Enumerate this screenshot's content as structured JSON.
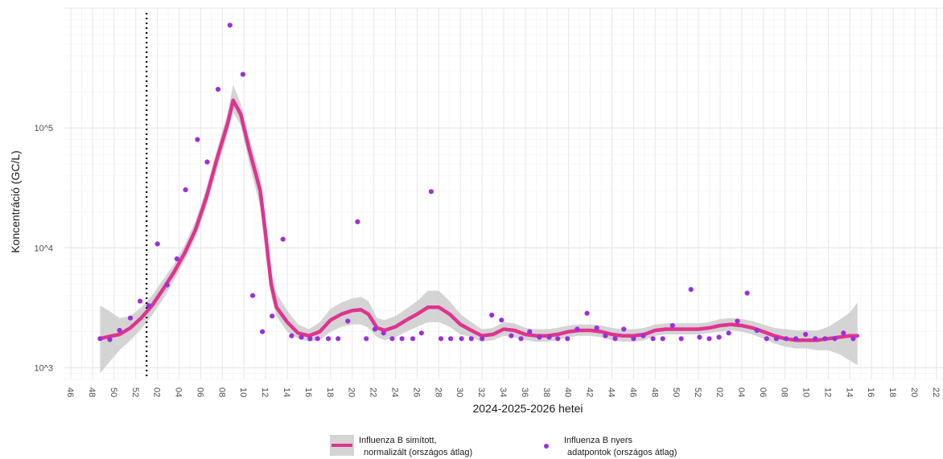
{
  "chart_data": {
    "type": "line",
    "xlabel": "2024-2025-2026 hetei",
    "ylabel": "Koncentráció (GC/L)",
    "y_scale": "log",
    "ylim": [
      800,
      1000000
    ],
    "y_ticks": [
      {
        "value": 1000,
        "label": "10^3"
      },
      {
        "value": 10000,
        "label": "10^4"
      },
      {
        "value": 100000,
        "label": "10^5"
      }
    ],
    "x_ticks": [
      "46",
      "48",
      "50",
      "52",
      "02",
      "04",
      "06",
      "08",
      "10",
      "12",
      "14",
      "16",
      "18",
      "20",
      "22",
      "24",
      "26",
      "28",
      "30",
      "32",
      "34",
      "36",
      "38",
      "40",
      "42",
      "44",
      "46",
      "48",
      "50",
      "52",
      "02",
      "04",
      "06",
      "08",
      "10",
      "12",
      "14",
      "16",
      "18",
      "20",
      "22"
    ],
    "x_unit": "week index from 2024-W46",
    "xlim": [
      -0.6,
      80.6
    ],
    "reference_line": {
      "x": 7,
      "style": "dotted",
      "color": "#000000"
    },
    "grid": true,
    "legend_position": "bottom",
    "colors": {
      "smoothed": "#e0338f",
      "ribbon": "#cccccc",
      "raw": "#9b30d9"
    },
    "smoothed": {
      "name": "Influenza B simított, normalizált (országos átlag)",
      "points": [
        [
          2.7,
          1750
        ],
        [
          3.5,
          1820
        ],
        [
          4.5,
          1900
        ],
        [
          5.5,
          2150
        ],
        [
          6.5,
          2600
        ],
        [
          7.5,
          3300
        ],
        [
          8.5,
          4500
        ],
        [
          9.5,
          6200
        ],
        [
          10.5,
          9000
        ],
        [
          11.5,
          14000
        ],
        [
          12.5,
          26000
        ],
        [
          13.5,
          55000
        ],
        [
          14.5,
          110000
        ],
        [
          15.0,
          170000
        ],
        [
          15.7,
          130000
        ],
        [
          16.5,
          65000
        ],
        [
          17.5,
          30000
        ],
        [
          18.0,
          13000
        ],
        [
          18.5,
          5000
        ],
        [
          19.0,
          3200
        ],
        [
          20.0,
          2400
        ],
        [
          21.0,
          1950
        ],
        [
          22.0,
          1850
        ],
        [
          23.0,
          2000
        ],
        [
          24.0,
          2500
        ],
        [
          25.0,
          2800
        ],
        [
          26.0,
          3000
        ],
        [
          26.8,
          3050
        ],
        [
          27.5,
          2800
        ],
        [
          28.3,
          2150
        ],
        [
          29.0,
          2050
        ],
        [
          30.0,
          2200
        ],
        [
          31.0,
          2500
        ],
        [
          32.0,
          2800
        ],
        [
          33.0,
          3200
        ],
        [
          34.0,
          3200
        ],
        [
          35.0,
          2800
        ],
        [
          36.0,
          2300
        ],
        [
          37.0,
          2050
        ],
        [
          38.0,
          1850
        ],
        [
          39.0,
          1900
        ],
        [
          40.0,
          2100
        ],
        [
          41.0,
          2050
        ],
        [
          42.0,
          1900
        ],
        [
          43.0,
          1850
        ],
        [
          44.0,
          1850
        ],
        [
          45.0,
          1900
        ],
        [
          46.0,
          2000
        ],
        [
          47.0,
          2050
        ],
        [
          48.0,
          2050
        ],
        [
          49.0,
          2000
        ],
        [
          50.0,
          1900
        ],
        [
          51.0,
          1850
        ],
        [
          52.0,
          1850
        ],
        [
          53.0,
          1900
        ],
        [
          54.0,
          2050
        ],
        [
          55.0,
          2100
        ],
        [
          56.0,
          2100
        ],
        [
          57.0,
          2100
        ],
        [
          58.0,
          2100
        ],
        [
          59.0,
          2150
        ],
        [
          60.0,
          2250
        ],
        [
          61.0,
          2300
        ],
        [
          62.0,
          2250
        ],
        [
          63.0,
          2150
        ],
        [
          64.0,
          2000
        ],
        [
          65.0,
          1850
        ],
        [
          66.0,
          1750
        ],
        [
          67.0,
          1700
        ],
        [
          68.0,
          1700
        ],
        [
          69.0,
          1700
        ],
        [
          70.0,
          1750
        ],
        [
          71.0,
          1800
        ],
        [
          72.0,
          1850
        ],
        [
          72.7,
          1850
        ]
      ],
      "lower": [
        900,
        1100,
        1400,
        1700,
        2100,
        2750,
        3700,
        5300,
        7800,
        12000,
        22000,
        45000,
        90000,
        135000,
        105000,
        50000,
        22000,
        9000,
        4000,
        2700,
        2000,
        1750,
        1650,
        1700,
        2000,
        2200,
        2300,
        2300,
        2150,
        1800,
        1700,
        1800,
        2000,
        2200,
        2400,
        2400,
        2200,
        1900,
        1800,
        1650,
        1700,
        1850,
        1800,
        1700,
        1650,
        1650,
        1700,
        1800,
        1850,
        1850,
        1800,
        1700,
        1650,
        1650,
        1700,
        1850,
        1900,
        1900,
        1900,
        1900,
        1950,
        2000,
        2050,
        2000,
        1900,
        1750,
        1600,
        1500,
        1450,
        1450,
        1400,
        1400,
        1300,
        1150,
        1050
      ],
      "upper": [
        3300,
        3000,
        2600,
        2700,
        3200,
        4000,
        5400,
        7200,
        10500,
        16500,
        31000,
        66000,
        135000,
        230000,
        160000,
        82000,
        40000,
        18000,
        6500,
        4200,
        3000,
        2300,
        2100,
        2400,
        3100,
        3500,
        3800,
        3900,
        3600,
        2600,
        2500,
        2700,
        3100,
        3600,
        4400,
        4400,
        3600,
        2800,
        2400,
        2100,
        2150,
        2400,
        2350,
        2150,
        2100,
        2100,
        2150,
        2250,
        2300,
        2300,
        2250,
        2150,
        2100,
        2100,
        2150,
        2300,
        2350,
        2350,
        2350,
        2350,
        2400,
        2550,
        2600,
        2550,
        2450,
        2300,
        2150,
        2100,
        2050,
        2050,
        2050,
        2200,
        2500,
        2900,
        3500
      ]
    },
    "raw": {
      "name": "Influenza B nyers adatpontok (országos átlag)",
      "points": [
        [
          2.7,
          1750
        ],
        [
          3.6,
          1720
        ],
        [
          4.5,
          2050
        ],
        [
          5.5,
          2600
        ],
        [
          6.4,
          3600
        ],
        [
          7.2,
          3300
        ],
        [
          8.0,
          10800
        ],
        [
          8.9,
          4900
        ],
        [
          9.8,
          8100
        ],
        [
          10.6,
          30500
        ],
        [
          11.7,
          80000
        ],
        [
          12.6,
          52000
        ],
        [
          13.6,
          210000
        ],
        [
          14.7,
          720000
        ],
        [
          15.9,
          280000
        ],
        [
          16.8,
          4000
        ],
        [
          17.7,
          2000
        ],
        [
          18.6,
          2700
        ],
        [
          19.6,
          11800
        ],
        [
          20.4,
          1850
        ],
        [
          21.3,
          1800
        ],
        [
          22.1,
          1750
        ],
        [
          22.8,
          1750
        ],
        [
          23.8,
          1750
        ],
        [
          24.7,
          1750
        ],
        [
          25.6,
          2450
        ],
        [
          26.5,
          16500
        ],
        [
          27.3,
          1750
        ],
        [
          28.1,
          2100
        ],
        [
          28.9,
          1950
        ],
        [
          29.7,
          1750
        ],
        [
          30.6,
          1750
        ],
        [
          31.6,
          1750
        ],
        [
          32.4,
          1950
        ],
        [
          33.3,
          29500
        ],
        [
          34.2,
          1750
        ],
        [
          35.1,
          1750
        ],
        [
          36.1,
          1750
        ],
        [
          37.0,
          1750
        ],
        [
          38.0,
          1750
        ],
        [
          38.9,
          2750
        ],
        [
          39.8,
          2500
        ],
        [
          40.7,
          1850
        ],
        [
          41.6,
          1750
        ],
        [
          42.4,
          2000
        ],
        [
          43.3,
          1800
        ],
        [
          44.2,
          1800
        ],
        [
          45.0,
          1750
        ],
        [
          45.9,
          1750
        ],
        [
          46.8,
          2100
        ],
        [
          47.7,
          2850
        ],
        [
          48.6,
          2150
        ],
        [
          49.4,
          1850
        ],
        [
          50.3,
          1750
        ],
        [
          51.1,
          2100
        ],
        [
          52.0,
          1750
        ],
        [
          52.9,
          1850
        ],
        [
          53.8,
          1750
        ],
        [
          54.7,
          1750
        ],
        [
          55.6,
          2250
        ],
        [
          56.4,
          1750
        ],
        [
          57.3,
          4500
        ],
        [
          58.1,
          1800
        ],
        [
          59.0,
          1750
        ],
        [
          59.9,
          1800
        ],
        [
          60.8,
          1950
        ],
        [
          61.6,
          2450
        ],
        [
          62.5,
          4200
        ],
        [
          63.4,
          2050
        ],
        [
          64.3,
          1750
        ],
        [
          65.2,
          1750
        ],
        [
          66.1,
          1750
        ],
        [
          67.0,
          1750
        ],
        [
          67.9,
          1900
        ],
        [
          68.8,
          1750
        ],
        [
          69.7,
          1750
        ],
        [
          70.6,
          1750
        ],
        [
          71.4,
          1950
        ],
        [
          72.3,
          1750
        ]
      ]
    },
    "legend": [
      {
        "key": "smoothed",
        "lines": [
          "Influenza B simított,",
          "normalizált (országos átlag)"
        ]
      },
      {
        "key": "raw",
        "lines": [
          "Influenza B nyers",
          "adatpontok (országos átlag)"
        ]
      }
    ]
  }
}
